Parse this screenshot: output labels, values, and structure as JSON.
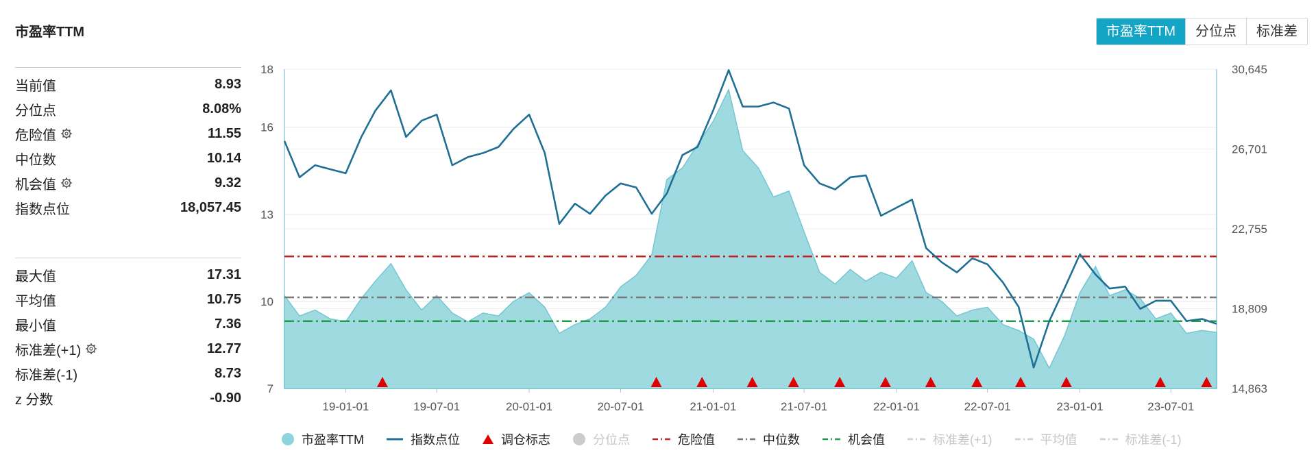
{
  "title": "市盈率TTM",
  "tabs": [
    {
      "label": "市盈率TTM",
      "active": true
    },
    {
      "label": "分位点",
      "active": false
    },
    {
      "label": "标准差",
      "active": false
    }
  ],
  "stats_top": [
    {
      "label": "当前值",
      "value": "8.93",
      "gear": false
    },
    {
      "label": "分位点",
      "value": "8.08%",
      "gear": false
    },
    {
      "label": "危险值",
      "value": "11.55",
      "gear": true
    },
    {
      "label": "中位数",
      "value": "10.14",
      "gear": false
    },
    {
      "label": "机会值",
      "value": "9.32",
      "gear": true
    },
    {
      "label": "指数点位",
      "value": "18,057.45",
      "gear": false
    }
  ],
  "stats_bottom": [
    {
      "label": "最大值",
      "value": "17.31",
      "gear": false
    },
    {
      "label": "平均值",
      "value": "10.75",
      "gear": false
    },
    {
      "label": "最小值",
      "value": "7.36",
      "gear": false
    },
    {
      "label": "标准差(+1)",
      "value": "12.77",
      "gear": true
    },
    {
      "label": "标准差(-1)",
      "value": "8.73",
      "gear": false
    },
    {
      "label": "z 分数",
      "value": "-0.90",
      "gear": false
    }
  ],
  "legend": [
    {
      "label": "市盈率TTM",
      "kind": "dot",
      "color": "#8fd3dc",
      "active": true
    },
    {
      "label": "指数点位",
      "kind": "line",
      "color": "#1f6f95",
      "active": true
    },
    {
      "label": "调仓标志",
      "kind": "triangle",
      "color": "#e00000",
      "active": true
    },
    {
      "label": "分位点",
      "kind": "dot",
      "color": "#cccccc",
      "active": false
    },
    {
      "label": "危险值",
      "kind": "dashdot",
      "color": "#c0201f",
      "active": true
    },
    {
      "label": "中位数",
      "kind": "dashdot",
      "color": "#777777",
      "active": true
    },
    {
      "label": "机会值",
      "kind": "dashdot",
      "color": "#1e9c4c",
      "active": true
    },
    {
      "label": "标准差(+1)",
      "kind": "dashdot",
      "color": "#cccccc",
      "active": false
    },
    {
      "label": "平均值",
      "kind": "dashdot",
      "color": "#cccccc",
      "active": false
    },
    {
      "label": "标准差(-1)",
      "kind": "dashdot",
      "color": "#cccccc",
      "active": false
    }
  ],
  "chart_data": {
    "type": "area",
    "x_range": [
      "2018-09-01",
      "2023-09-30"
    ],
    "x_ticks": [
      "19-01-01",
      "19-07-01",
      "20-01-01",
      "20-07-01",
      "21-01-01",
      "21-07-01",
      "22-01-01",
      "22-07-01",
      "23-01-01",
      "23-07-01"
    ],
    "y_left": {
      "ticks": [
        "18",
        "16",
        "13",
        "10",
        "7"
      ],
      "min": 7,
      "max": 18
    },
    "y_right": {
      "ticks": [
        "30,645",
        "26,701",
        "22,755",
        "18,809",
        "14,863"
      ],
      "min": 14863,
      "max": 30645
    },
    "reference_lines": [
      {
        "name": "危险值",
        "value": 11.55,
        "color": "#c0201f"
      },
      {
        "name": "中位数",
        "value": 10.14,
        "color": "#777777"
      },
      {
        "name": "机会值",
        "value": 9.32,
        "color": "#1e9c4c"
      }
    ],
    "pe_series": {
      "name": "市盈率TTM",
      "color": "#8fd3dc",
      "points": [
        [
          "2018-09-01",
          10.2
        ],
        [
          "2018-10-01",
          9.5
        ],
        [
          "2018-11-01",
          9.7
        ],
        [
          "2018-12-01",
          9.4
        ],
        [
          "2019-01-01",
          9.3
        ],
        [
          "2019-02-01",
          10.1
        ],
        [
          "2019-03-01",
          10.7
        ],
        [
          "2019-04-01",
          11.3
        ],
        [
          "2019-05-01",
          10.4
        ],
        [
          "2019-06-01",
          9.7
        ],
        [
          "2019-07-01",
          10.2
        ],
        [
          "2019-08-01",
          9.6
        ],
        [
          "2019-09-01",
          9.3
        ],
        [
          "2019-10-01",
          9.6
        ],
        [
          "2019-11-01",
          9.5
        ],
        [
          "2019-12-01",
          10.0
        ],
        [
          "2020-01-01",
          10.3
        ],
        [
          "2020-02-01",
          9.8
        ],
        [
          "2020-03-01",
          8.9
        ],
        [
          "2020-04-01",
          9.2
        ],
        [
          "2020-05-01",
          9.4
        ],
        [
          "2020-06-01",
          9.8
        ],
        [
          "2020-07-01",
          10.5
        ],
        [
          "2020-08-01",
          10.9
        ],
        [
          "2020-09-01",
          11.6
        ],
        [
          "2020-10-01",
          14.2
        ],
        [
          "2020-11-01",
          14.6
        ],
        [
          "2020-12-01",
          15.4
        ],
        [
          "2021-01-01",
          16.2
        ],
        [
          "2021-02-01",
          17.3
        ],
        [
          "2021-03-01",
          15.2
        ],
        [
          "2021-04-01",
          14.6
        ],
        [
          "2021-05-01",
          13.6
        ],
        [
          "2021-06-01",
          13.8
        ],
        [
          "2021-07-01",
          12.4
        ],
        [
          "2021-08-01",
          11.0
        ],
        [
          "2021-09-01",
          10.6
        ],
        [
          "2021-10-01",
          11.1
        ],
        [
          "2021-11-01",
          10.7
        ],
        [
          "2021-12-01",
          11.0
        ],
        [
          "2022-01-01",
          10.8
        ],
        [
          "2022-02-01",
          11.4
        ],
        [
          "2022-03-01",
          10.3
        ],
        [
          "2022-04-01",
          10.0
        ],
        [
          "2022-05-01",
          9.5
        ],
        [
          "2022-06-01",
          9.7
        ],
        [
          "2022-07-01",
          9.8
        ],
        [
          "2022-08-01",
          9.2
        ],
        [
          "2022-09-01",
          9.0
        ],
        [
          "2022-10-01",
          8.7
        ],
        [
          "2022-11-01",
          7.7
        ],
        [
          "2022-12-01",
          8.8
        ],
        [
          "2023-01-01",
          10.3
        ],
        [
          "2023-02-01",
          11.2
        ],
        [
          "2023-03-01",
          10.2
        ],
        [
          "2023-04-01",
          10.4
        ],
        [
          "2023-05-01",
          10.1
        ],
        [
          "2023-06-01",
          9.4
        ],
        [
          "2023-07-01",
          9.6
        ],
        [
          "2023-08-01",
          8.9
        ],
        [
          "2023-09-01",
          9.0
        ],
        [
          "2023-09-30",
          8.93
        ]
      ]
    },
    "index_series": {
      "name": "指数点位",
      "color": "#1f6f95",
      "points": [
        [
          "2018-09-01",
          27100
        ],
        [
          "2018-10-01",
          25300
        ],
        [
          "2018-11-01",
          25900
        ],
        [
          "2018-12-01",
          25700
        ],
        [
          "2019-01-01",
          25500
        ],
        [
          "2019-02-01",
          27300
        ],
        [
          "2019-03-01",
          28600
        ],
        [
          "2019-04-01",
          29600
        ],
        [
          "2019-05-01",
          27300
        ],
        [
          "2019-06-01",
          28100
        ],
        [
          "2019-07-01",
          28400
        ],
        [
          "2019-08-01",
          25900
        ],
        [
          "2019-09-01",
          26300
        ],
        [
          "2019-10-01",
          26500
        ],
        [
          "2019-11-01",
          26800
        ],
        [
          "2019-12-01",
          27700
        ],
        [
          "2020-01-01",
          28400
        ],
        [
          "2020-02-01",
          26500
        ],
        [
          "2020-03-01",
          23000
        ],
        [
          "2020-04-01",
          24000
        ],
        [
          "2020-05-01",
          23500
        ],
        [
          "2020-06-01",
          24400
        ],
        [
          "2020-07-01",
          25000
        ],
        [
          "2020-08-01",
          24800
        ],
        [
          "2020-09-01",
          23500
        ],
        [
          "2020-10-01",
          24500
        ],
        [
          "2020-11-01",
          26400
        ],
        [
          "2020-12-01",
          26800
        ],
        [
          "2021-01-01",
          28600
        ],
        [
          "2021-02-01",
          30600
        ],
        [
          "2021-03-01",
          28800
        ],
        [
          "2021-04-01",
          28800
        ],
        [
          "2021-05-01",
          29000
        ],
        [
          "2021-06-01",
          28700
        ],
        [
          "2021-07-01",
          25900
        ],
        [
          "2021-08-01",
          25000
        ],
        [
          "2021-09-01",
          24700
        ],
        [
          "2021-10-01",
          25300
        ],
        [
          "2021-11-01",
          25400
        ],
        [
          "2021-12-01",
          23400
        ],
        [
          "2022-01-01",
          23800
        ],
        [
          "2022-02-01",
          24200
        ],
        [
          "2022-03-01",
          21800
        ],
        [
          "2022-04-01",
          21100
        ],
        [
          "2022-05-01",
          20600
        ],
        [
          "2022-06-01",
          21300
        ],
        [
          "2022-07-01",
          21000
        ],
        [
          "2022-08-01",
          20100
        ],
        [
          "2022-09-01",
          18900
        ],
        [
          "2022-10-01",
          15900
        ],
        [
          "2022-11-01",
          18200
        ],
        [
          "2022-12-01",
          19800
        ],
        [
          "2023-01-01",
          21500
        ],
        [
          "2023-02-01",
          20500
        ],
        [
          "2023-03-01",
          19800
        ],
        [
          "2023-04-01",
          19900
        ],
        [
          "2023-05-01",
          18800
        ],
        [
          "2023-06-01",
          19200
        ],
        [
          "2023-07-01",
          19200
        ],
        [
          "2023-08-01",
          18200
        ],
        [
          "2023-09-01",
          18300
        ],
        [
          "2023-09-30",
          18057
        ]
      ]
    },
    "rebalance_markers": [
      "2019-03-15",
      "2020-09-10",
      "2020-12-10",
      "2021-03-20",
      "2021-06-10",
      "2021-09-10",
      "2021-12-10",
      "2022-03-10",
      "2022-06-10",
      "2022-09-05",
      "2022-12-05",
      "2023-06-10",
      "2023-09-10"
    ]
  }
}
